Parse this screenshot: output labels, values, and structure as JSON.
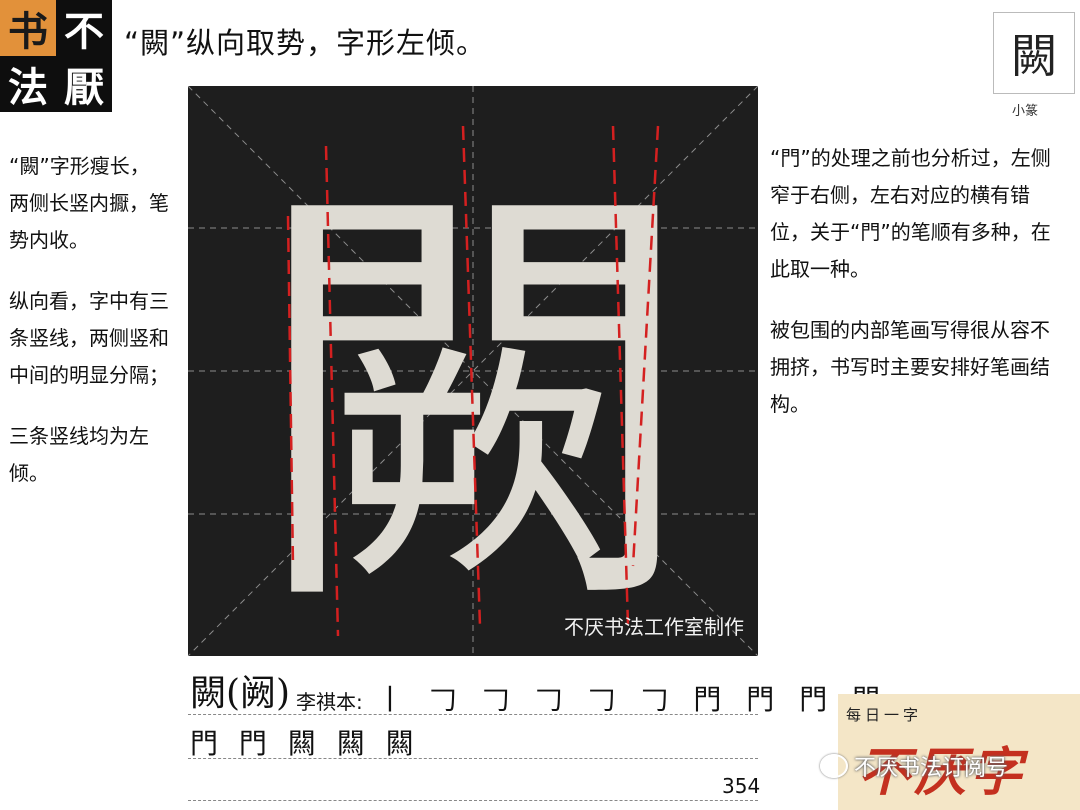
{
  "logo": {
    "chars": [
      "书",
      "不",
      "法",
      "厭"
    ]
  },
  "headline": "“闕”纵向取势，字形左倾。",
  "seal": {
    "glyph": "闕",
    "label": "小篆"
  },
  "left_notes": [
    "“闕”字形瘦长，两侧长竖内擫，笔势内收。",
    "纵向看，字中有三条竖线，两侧竖和中间的明显分隔；",
    "三条竖线均为左倾。"
  ],
  "right_notes": [
    "“門”的处理之前也分析过，左侧窄于右侧，左右对应的横有错位，关于“門”的笔顺有多种，在此取一种。",
    "被包围的内部笔画写得很从容不拥挤，书写时主要安排好笔画结构。"
  ],
  "rubbing": {
    "glyph": "闕",
    "watermark": "不厌书法工作室制作"
  },
  "bottom": {
    "char_title": "闕(阙)",
    "source_label": "李祺本:",
    "strokes_row1": "丨 𠃌 𠃌 𠃌 𠃌 𠃌 門 門 門 門",
    "strokes_row2": "門 門 闗 闗 闗",
    "page_number": "354"
  },
  "promo": {
    "label": "每日一字",
    "title": "不厌字",
    "wechat_text": "不厌书法订阅号"
  },
  "colors": {
    "logo_bg": "#0e0e0e",
    "logo_accent": "#e2913a",
    "guide_red": "#d42020",
    "promo_bg": "#f4e6c7",
    "promo_red": "#c4301f"
  }
}
